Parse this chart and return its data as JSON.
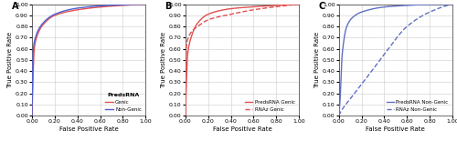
{
  "panel_A": {
    "label": "A",
    "title": "PredsRNA",
    "curves": [
      {
        "name": "Genic",
        "color": "#e05050",
        "linestyle": "solid",
        "linewidth": 1.0,
        "control_points": [
          [
            0,
            0
          ],
          [
            0.02,
            0.6
          ],
          [
            0.05,
            0.73
          ],
          [
            0.1,
            0.82
          ],
          [
            0.2,
            0.9
          ],
          [
            0.4,
            0.95
          ],
          [
            0.6,
            0.975
          ],
          [
            0.8,
            0.99
          ],
          [
            1.0,
            1.0
          ]
        ]
      },
      {
        "name": "Non-Genic",
        "color": "#5060d0",
        "linestyle": "solid",
        "linewidth": 1.0,
        "control_points": [
          [
            0,
            0
          ],
          [
            0.01,
            0.58
          ],
          [
            0.03,
            0.7
          ],
          [
            0.08,
            0.81
          ],
          [
            0.2,
            0.91
          ],
          [
            0.4,
            0.965
          ],
          [
            0.6,
            0.985
          ],
          [
            0.8,
            0.995
          ],
          [
            1.0,
            1.0
          ]
        ]
      }
    ],
    "xlabel": "False Positive Rate",
    "ylabel": "True Positive Rate",
    "xlim": [
      0,
      1.0
    ],
    "ylim": [
      0,
      1.0
    ],
    "xticks": [
      0.0,
      0.2,
      0.4,
      0.6,
      0.8,
      1.0
    ],
    "yticks": [
      0.0,
      0.1,
      0.2,
      0.3,
      0.4,
      0.5,
      0.6,
      0.7,
      0.8,
      0.9,
      1.0
    ],
    "legend_loc": "lower right",
    "legend_title_bold": true
  },
  "panel_B": {
    "label": "B",
    "curves": [
      {
        "name": "PredsRNA Genic",
        "color": "#e05050",
        "linestyle": "solid",
        "linewidth": 1.0,
        "control_points": [
          [
            0,
            0
          ],
          [
            0.02,
            0.55
          ],
          [
            0.05,
            0.7
          ],
          [
            0.1,
            0.82
          ],
          [
            0.2,
            0.91
          ],
          [
            0.4,
            0.96
          ],
          [
            0.6,
            0.977
          ],
          [
            0.8,
            0.99
          ],
          [
            1.0,
            1.0
          ]
        ]
      },
      {
        "name": "RNAz Genic",
        "color": "#e05050",
        "linestyle": "dashed",
        "linewidth": 1.0,
        "control_points": [
          [
            0,
            0
          ],
          [
            0.01,
            0.63
          ],
          [
            0.03,
            0.71
          ],
          [
            0.06,
            0.76
          ],
          [
            0.12,
            0.81
          ],
          [
            0.2,
            0.86
          ],
          [
            0.4,
            0.91
          ],
          [
            0.6,
            0.95
          ],
          [
            0.8,
            0.978
          ],
          [
            1.0,
            1.0
          ]
        ]
      }
    ],
    "xlabel": "False Positive Rate",
    "ylabel": "True Positive Rate",
    "xlim": [
      0,
      1.0
    ],
    "ylim": [
      0,
      1.0
    ],
    "xticks": [
      0.0,
      0.2,
      0.4,
      0.6,
      0.8,
      1.0
    ],
    "yticks": [
      0.0,
      0.1,
      0.2,
      0.3,
      0.4,
      0.5,
      0.6,
      0.7,
      0.8,
      0.9,
      1.0
    ],
    "legend_loc": "lower right"
  },
  "panel_C": {
    "label": "C",
    "curves": [
      {
        "name": "PredsRNA Non-Genic",
        "color": "#6070c0",
        "linestyle": "solid",
        "linewidth": 1.0,
        "control_points": [
          [
            0,
            0
          ],
          [
            0.01,
            0.12
          ],
          [
            0.03,
            0.55
          ],
          [
            0.07,
            0.8
          ],
          [
            0.12,
            0.88
          ],
          [
            0.2,
            0.93
          ],
          [
            0.4,
            0.975
          ],
          [
            0.6,
            0.99
          ],
          [
            0.8,
            0.998
          ],
          [
            1.0,
            1.0
          ]
        ]
      },
      {
        "name": "RNAz Non-Genic",
        "color": "#6070c0",
        "linestyle": "dashed",
        "linewidth": 1.0,
        "control_points": [
          [
            0,
            0
          ],
          [
            0.02,
            0.04
          ],
          [
            0.1,
            0.15
          ],
          [
            0.2,
            0.28
          ],
          [
            0.4,
            0.55
          ],
          [
            0.6,
            0.8
          ],
          [
            0.8,
            0.93
          ],
          [
            1.0,
            1.0
          ]
        ]
      }
    ],
    "xlabel": "False Positive Rate",
    "ylabel": "True Positive Rate",
    "xlim": [
      0,
      1.0
    ],
    "ylim": [
      0,
      1.0
    ],
    "xticks": [
      0.0,
      0.2,
      0.4,
      0.6,
      0.8,
      1.0
    ],
    "yticks": [
      0.0,
      0.1,
      0.2,
      0.3,
      0.4,
      0.5,
      0.6,
      0.7,
      0.8,
      0.9,
      1.0
    ],
    "legend_loc": "lower right"
  },
  "figure_bg": "#ffffff",
  "axes_bg": "#ffffff",
  "grid_color": "#cccccc",
  "tick_fontsize": 4.5,
  "label_fontsize": 5.0,
  "legend_fontsize": 4.0,
  "panel_label_fontsize": 7.0
}
